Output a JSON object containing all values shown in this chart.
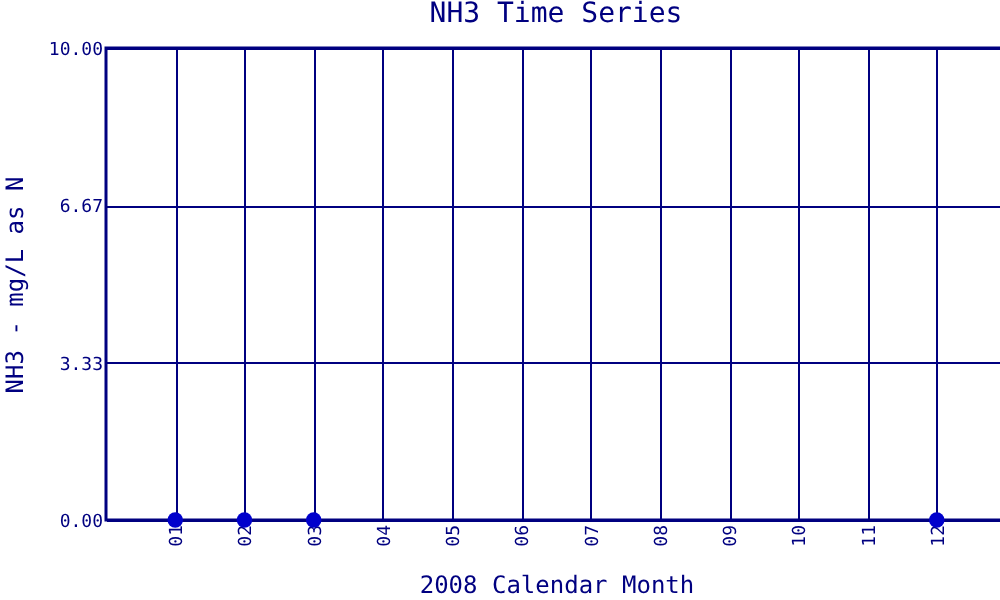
{
  "chart_data": {
    "type": "scatter",
    "title": "NH3 Time Series",
    "xlabel": "2008 Calendar Month",
    "ylabel": "NH3 - mg/L as N",
    "categories": [
      "01",
      "02",
      "03",
      "04",
      "05",
      "06",
      "07",
      "08",
      "09",
      "10",
      "11",
      "12"
    ],
    "series": [
      {
        "color": "#0000cc",
        "values": [
          0,
          0,
          0,
          null,
          null,
          null,
          null,
          null,
          null,
          null,
          null,
          0
        ]
      }
    ],
    "ylim": [
      0,
      10
    ],
    "yticks": [
      {
        "value": 0,
        "label": "0.00"
      },
      3.33,
      6.67,
      {
        "value": 10,
        "label": "10.00"
      }
    ],
    "grid": true,
    "marker": "circle"
  }
}
